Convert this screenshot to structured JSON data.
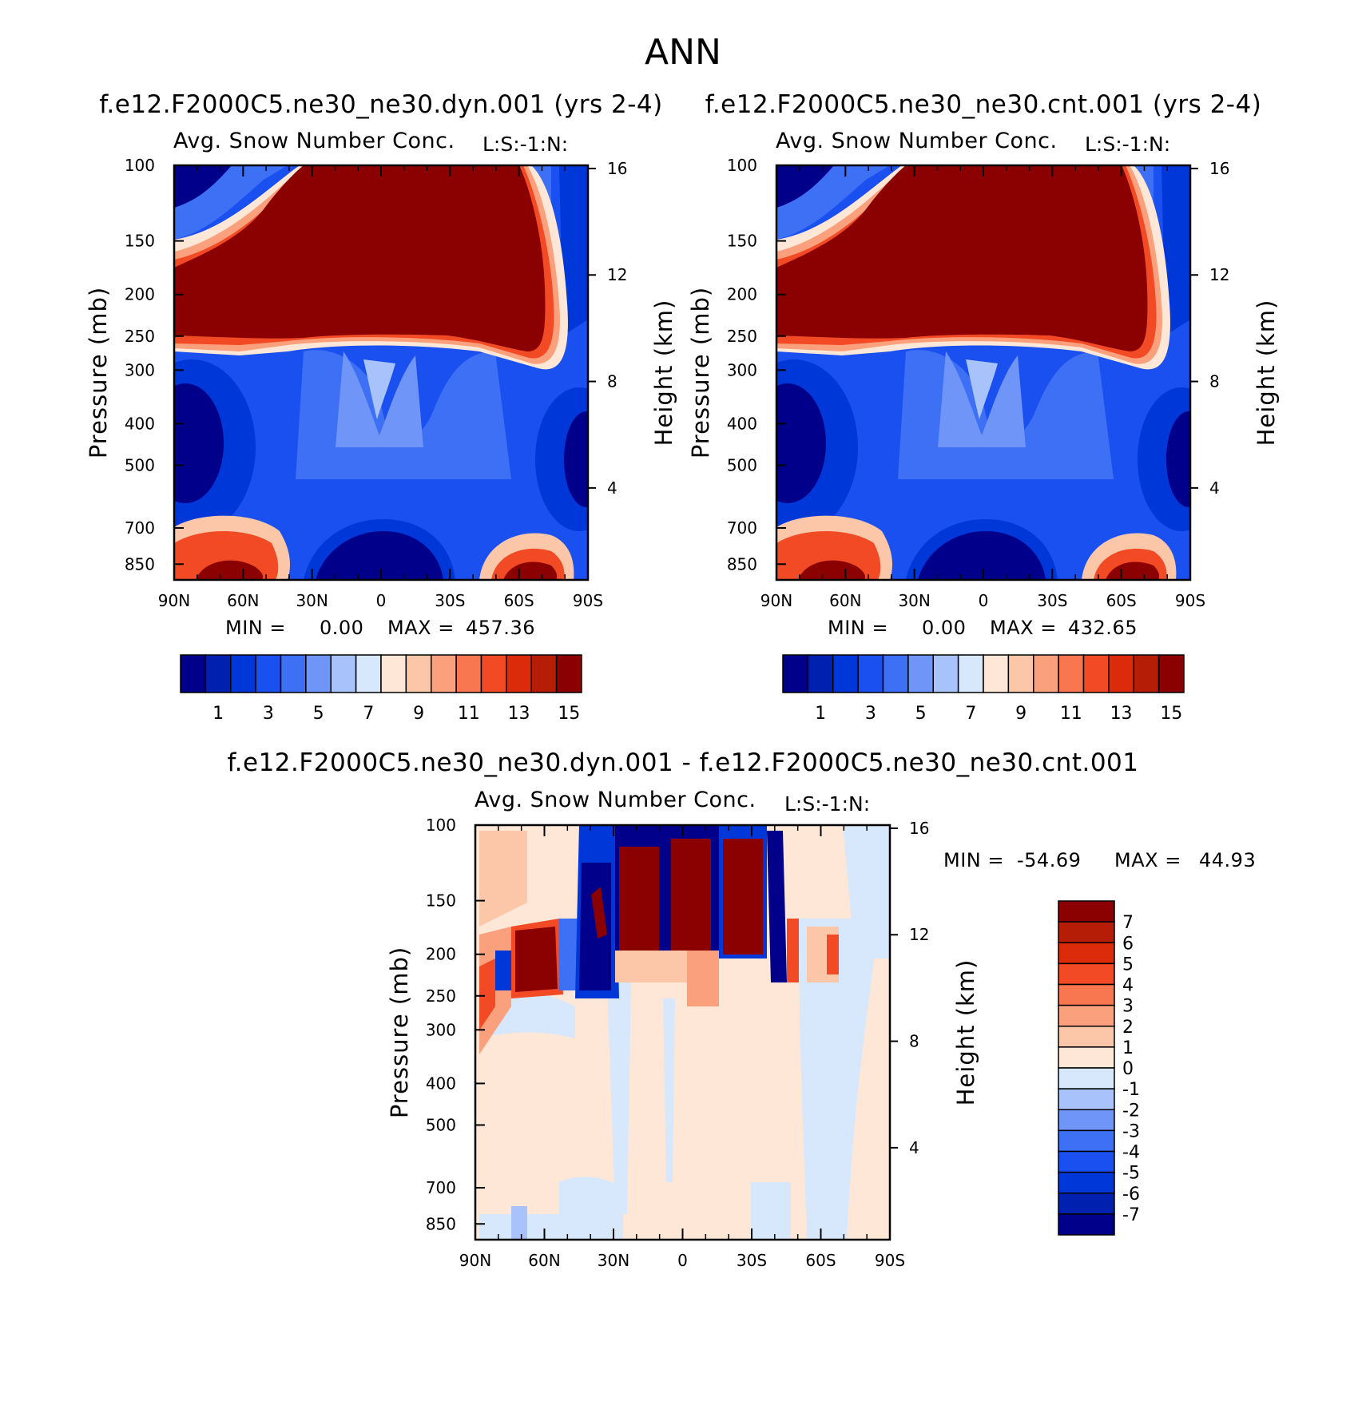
{
  "title": "ANN",
  "panels": [
    {
      "case_title": "f.e12.F2000C5.ne30_ne30.dyn.001 (yrs 2-4)",
      "variable": "Avg. Snow Number Conc.",
      "tag": "L:S:-1:N:",
      "stats": {
        "min_label": "MIN =",
        "min_value": "0.00",
        "max_label": "MAX =",
        "max_value": "457.36"
      }
    },
    {
      "case_title": "f.e12.F2000C5.ne30_ne30.cnt.001 (yrs 2-4)",
      "variable": "Avg. Snow Number Conc.",
      "tag": "L:S:-1:N:",
      "stats": {
        "min_label": "MIN =",
        "min_value": "0.00",
        "max_label": "MAX =",
        "max_value": "432.65"
      }
    },
    {
      "case_title": "f.e12.F2000C5.ne30_ne30.dyn.001 - f.e12.F2000C5.ne30_ne30.cnt.001",
      "variable": "Avg. Snow Number Conc.",
      "tag": "L:S:-1:N:",
      "stats": {
        "min_label": "MIN =",
        "min_value": "-54.69",
        "max_label": "MAX =",
        "max_value": "44.93"
      }
    }
  ],
  "chart_data": [
    {
      "type": "heatmap",
      "title": "Avg. Snow Number Conc.",
      "xlabel": "",
      "ylabel": "Pressure (mb)",
      "y2label": "Height (km)",
      "x_ticks": [
        "90N",
        "60N",
        "30N",
        "0",
        "30S",
        "60S",
        "90S"
      ],
      "x_tick_values": [
        90,
        60,
        30,
        0,
        -30,
        -60,
        -90
      ],
      "xlim": [
        90,
        -90
      ],
      "y_ticks": [
        100,
        150,
        200,
        250,
        300,
        400,
        500,
        700,
        850
      ],
      "ylim": [
        100,
        925
      ],
      "y_scale": "log",
      "y2_ticks": [
        16,
        12,
        8,
        4
      ],
      "colorbar": {
        "levels": [
          0,
          1,
          2,
          3,
          4,
          5,
          6,
          7,
          8,
          9,
          10,
          11,
          12,
          13,
          14,
          15
        ],
        "labels": [
          "1",
          "3",
          "5",
          "7",
          "9",
          "11",
          "13",
          "15"
        ],
        "colors": [
          "#00008b",
          "#0020b0",
          "#0037d8",
          "#1a50f0",
          "#3d70f5",
          "#7095f8",
          "#a8c3fb",
          "#d7e8fd",
          "#fee7d6",
          "#fcc6a8",
          "#fba07c",
          "#f87650",
          "#f24a24",
          "#db2b0b",
          "#b51d06",
          "#8b0000"
        ]
      },
      "min": 0.0,
      "max": 457.36
    },
    {
      "type": "heatmap",
      "title": "Avg. Snow Number Conc.",
      "xlabel": "",
      "ylabel": "Pressure (mb)",
      "y2label": "Height (km)",
      "x_ticks": [
        "90N",
        "60N",
        "30N",
        "0",
        "30S",
        "60S",
        "90S"
      ],
      "x_tick_values": [
        90,
        60,
        30,
        0,
        -30,
        -60,
        -90
      ],
      "xlim": [
        90,
        -90
      ],
      "y_ticks": [
        100,
        150,
        200,
        250,
        300,
        400,
        500,
        700,
        850
      ],
      "ylim": [
        100,
        925
      ],
      "y_scale": "log",
      "y2_ticks": [
        16,
        12,
        8,
        4
      ],
      "colorbar": {
        "levels": [
          0,
          1,
          2,
          3,
          4,
          5,
          6,
          7,
          8,
          9,
          10,
          11,
          12,
          13,
          14,
          15
        ],
        "labels": [
          "1",
          "3",
          "5",
          "7",
          "9",
          "11",
          "13",
          "15"
        ],
        "colors": [
          "#00008b",
          "#0020b0",
          "#0037d8",
          "#1a50f0",
          "#3d70f5",
          "#7095f8",
          "#a8c3fb",
          "#d7e8fd",
          "#fee7d6",
          "#fcc6a8",
          "#fba07c",
          "#f87650",
          "#f24a24",
          "#db2b0b",
          "#b51d06",
          "#8b0000"
        ]
      },
      "min": 0.0,
      "max": 432.65
    },
    {
      "type": "heatmap",
      "title": "Avg. Snow Number Conc.",
      "xlabel": "",
      "ylabel": "Pressure (mb)",
      "y2label": "Height (km)",
      "x_ticks": [
        "90N",
        "60N",
        "30N",
        "0",
        "30S",
        "60S",
        "90S"
      ],
      "x_tick_values": [
        90,
        60,
        30,
        0,
        -30,
        -60,
        -90
      ],
      "xlim": [
        90,
        -90
      ],
      "y_ticks": [
        100,
        150,
        200,
        250,
        300,
        400,
        500,
        700,
        850
      ],
      "ylim": [
        100,
        925
      ],
      "y_scale": "log",
      "y2_ticks": [
        16,
        12,
        8,
        4
      ],
      "colorbar": {
        "orientation": "vertical",
        "levels": [
          -7,
          -6,
          -5,
          -4,
          -3,
          -2,
          -1,
          0,
          1,
          2,
          3,
          4,
          5,
          6,
          7
        ],
        "labels": [
          "7",
          "6",
          "5",
          "4",
          "3",
          "2",
          "1",
          "0",
          "-1",
          "-2",
          "-3",
          "-4",
          "-5",
          "-6",
          "-7"
        ],
        "colors": [
          "#00008b",
          "#0020b0",
          "#0037d8",
          "#1a50f0",
          "#3d70f5",
          "#7095f8",
          "#a8c3fb",
          "#d7e8fd",
          "#fee7d6",
          "#fcc6a8",
          "#fba07c",
          "#f87650",
          "#f24a24",
          "#db2b0b",
          "#b51d06",
          "#8b0000"
        ]
      },
      "min": -54.69,
      "max": 44.93
    }
  ]
}
